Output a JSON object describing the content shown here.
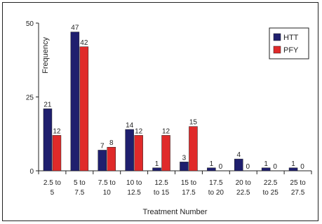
{
  "chart_data": {
    "type": "bar",
    "title": "",
    "xlabel": "Treatment Number",
    "ylabel": "Frequency",
    "ylim": [
      0,
      50
    ],
    "yticks": [
      0,
      25,
      50
    ],
    "categories": [
      [
        "2.5 to",
        "5"
      ],
      [
        "5 to",
        "7.5"
      ],
      [
        "7.5 to",
        "10"
      ],
      [
        "10 to",
        "12.5"
      ],
      [
        "12.5",
        "to 15"
      ],
      [
        "15 to",
        "17.5"
      ],
      [
        "17.5",
        "to 20"
      ],
      [
        "20 to",
        "22.5"
      ],
      [
        "22.5",
        "to 25"
      ],
      [
        "25 to",
        "27.5"
      ]
    ],
    "series": [
      {
        "name": "HTT",
        "color": "#1f1f6e",
        "values": [
          21,
          47,
          7,
          14,
          1,
          3,
          1,
          4,
          1,
          1
        ]
      },
      {
        "name": "PFY",
        "color": "#e02a2a",
        "values": [
          12,
          42,
          8,
          12,
          12,
          15,
          0,
          0,
          0,
          0
        ]
      }
    ],
    "legend": "top-right",
    "grid": false
  }
}
